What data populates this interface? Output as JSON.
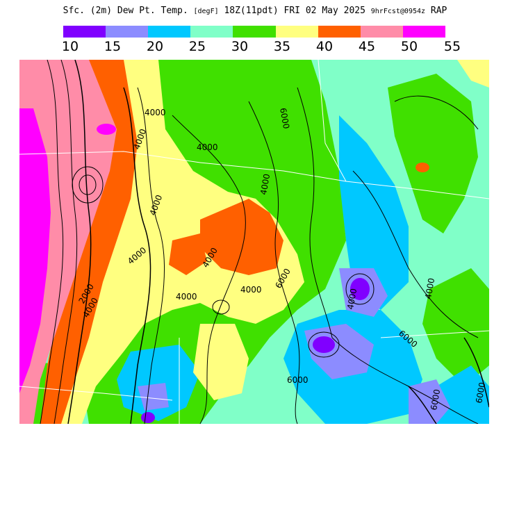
{
  "title": {
    "main": "Sfc. (2m) Dew Pt. Temp.",
    "units": "[degF]",
    "time": "18Z(11pdt) FRI 02 May 2025",
    "forecast": "9hrFcst@0954z",
    "model": "RAP"
  },
  "legend": {
    "ticks": [
      "10",
      "15",
      "20",
      "25",
      "30",
      "35",
      "40",
      "45",
      "50",
      "55"
    ],
    "colors": [
      "#8000ff",
      "#8c8cff",
      "#00c8ff",
      "#80ffc8",
      "#40e000",
      "#ffff80",
      "#ff6000",
      "#ff8ca8",
      "#ff00ff"
    ]
  },
  "contour_labels": [
    "2000",
    "4000",
    "4000",
    "4000",
    "4000",
    "4000",
    "4000",
    "4000",
    "4000",
    "4000",
    "4000",
    "4000",
    "4000",
    "6000",
    "6000",
    "6000",
    "6000",
    "6000",
    "6000"
  ],
  "colors": {
    "contour": "#000000",
    "borders": "#ffffff",
    "background": "#ffffff"
  }
}
